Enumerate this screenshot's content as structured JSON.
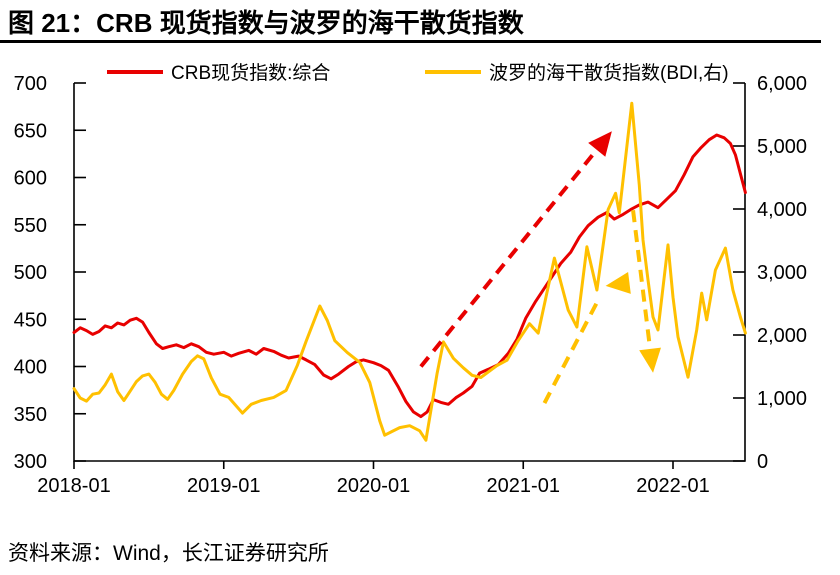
{
  "figure": {
    "source": "资料来源：Wind，长江证券研究所"
  },
  "chart_data": {
    "type": "line",
    "title": "图 21：CRB 现货指数与波罗的海干散货指数",
    "x_axis": {
      "unit": "months since 2018-01",
      "tick_months": [
        0,
        12,
        24,
        36,
        48
      ],
      "ticks": [
        "2018-01",
        "2019-01",
        "2020-01",
        "2021-01",
        "2022-01"
      ]
    },
    "left_axis": {
      "min": 300,
      "max": 700,
      "ticks": [
        "700",
        "650",
        "600",
        "550",
        "500",
        "450",
        "400",
        "350",
        "300"
      ]
    },
    "right_axis": {
      "min": 0,
      "max": 6000,
      "ticks": [
        "6,000",
        "5,000",
        "4,000",
        "3,000",
        "2,000",
        "1,000",
        "0"
      ]
    },
    "series": [
      {
        "name": "CRB现货指数:综合",
        "axis": "left",
        "color": "#e80000",
        "points": [
          [
            0,
            436
          ],
          [
            0.5,
            441
          ],
          [
            1,
            438
          ],
          [
            1.5,
            434
          ],
          [
            2,
            437
          ],
          [
            2.5,
            443
          ],
          [
            3,
            441
          ],
          [
            3.5,
            446
          ],
          [
            4,
            444
          ],
          [
            4.5,
            449
          ],
          [
            5,
            451
          ],
          [
            5.5,
            447
          ],
          [
            6,
            436
          ],
          [
            6.6,
            424
          ],
          [
            7.1,
            419
          ],
          [
            7.6,
            421
          ],
          [
            8.2,
            423
          ],
          [
            8.8,
            420
          ],
          [
            9.4,
            424
          ],
          [
            10,
            421
          ],
          [
            10.6,
            415
          ],
          [
            11.2,
            413
          ],
          [
            12,
            415
          ],
          [
            12.6,
            411
          ],
          [
            13.2,
            414
          ],
          [
            14,
            417
          ],
          [
            14.6,
            413
          ],
          [
            15.2,
            419
          ],
          [
            16,
            416
          ],
          [
            16.6,
            412
          ],
          [
            17.2,
            409
          ],
          [
            18,
            411
          ],
          [
            18.6,
            407
          ],
          [
            19.3,
            402
          ],
          [
            20,
            391
          ],
          [
            20.6,
            387
          ],
          [
            21.2,
            392
          ],
          [
            22,
            400
          ],
          [
            22.6,
            405
          ],
          [
            23.2,
            407
          ],
          [
            24,
            404
          ],
          [
            24.6,
            401
          ],
          [
            25.2,
            396
          ],
          [
            26,
            378
          ],
          [
            26.6,
            363
          ],
          [
            27.2,
            352
          ],
          [
            27.8,
            347
          ],
          [
            28.3,
            352
          ],
          [
            28.8,
            365
          ],
          [
            29.4,
            362
          ],
          [
            30,
            360
          ],
          [
            30.6,
            367
          ],
          [
            31.2,
            372
          ],
          [
            31.9,
            379
          ],
          [
            32.5,
            393
          ],
          [
            33.2,
            397
          ],
          [
            34,
            402
          ],
          [
            34.8,
            414
          ],
          [
            35.5,
            429
          ],
          [
            36.2,
            451
          ],
          [
            37,
            469
          ],
          [
            38,
            489
          ],
          [
            39,
            509
          ],
          [
            39.8,
            521
          ],
          [
            40.5,
            537
          ],
          [
            41.2,
            549
          ],
          [
            42,
            558
          ],
          [
            42.7,
            563
          ],
          [
            43.3,
            556
          ],
          [
            44,
            561
          ],
          [
            44.6,
            566
          ],
          [
            45.3,
            571
          ],
          [
            46,
            574
          ],
          [
            46.8,
            568
          ],
          [
            47.5,
            577
          ],
          [
            48.2,
            586
          ],
          [
            48.9,
            603
          ],
          [
            49.6,
            622
          ],
          [
            50.2,
            631
          ],
          [
            50.9,
            640
          ],
          [
            51.5,
            645
          ],
          [
            52.1,
            642
          ],
          [
            52.6,
            636
          ],
          [
            53,
            624
          ],
          [
            53.4,
            604
          ],
          [
            53.8,
            584
          ]
        ]
      },
      {
        "name": "波罗的海干散货指数(BDI,右)",
        "axis": "right",
        "color": "#ffc000",
        "points": [
          [
            0,
            1150
          ],
          [
            0.5,
            1000
          ],
          [
            1,
            950
          ],
          [
            1.5,
            1060
          ],
          [
            2,
            1080
          ],
          [
            2.5,
            1210
          ],
          [
            3,
            1380
          ],
          [
            3.5,
            1100
          ],
          [
            4,
            960
          ],
          [
            4.5,
            1110
          ],
          [
            5,
            1260
          ],
          [
            5.5,
            1350
          ],
          [
            6,
            1380
          ],
          [
            6.5,
            1250
          ],
          [
            7,
            1060
          ],
          [
            7.5,
            980
          ],
          [
            8,
            1120
          ],
          [
            8.7,
            1380
          ],
          [
            9.4,
            1580
          ],
          [
            9.9,
            1670
          ],
          [
            10.4,
            1620
          ],
          [
            11,
            1320
          ],
          [
            11.7,
            1060
          ],
          [
            12.4,
            1010
          ],
          [
            13.5,
            760
          ],
          [
            14.2,
            900
          ],
          [
            15,
            960
          ],
          [
            16,
            1010
          ],
          [
            17,
            1120
          ],
          [
            17.9,
            1520
          ],
          [
            18.6,
            1900
          ],
          [
            19.7,
            2460
          ],
          [
            20.3,
            2230
          ],
          [
            20.9,
            1910
          ],
          [
            21.9,
            1720
          ],
          [
            22.9,
            1565
          ],
          [
            23.7,
            1245
          ],
          [
            24.5,
            640
          ],
          [
            24.9,
            410
          ],
          [
            25.5,
            470
          ],
          [
            26.1,
            530
          ],
          [
            26.9,
            560
          ],
          [
            27.7,
            480
          ],
          [
            28.2,
            330
          ],
          [
            29.1,
            1390
          ],
          [
            29.6,
            1890
          ],
          [
            30.4,
            1630
          ],
          [
            31.2,
            1480
          ],
          [
            31.9,
            1360
          ],
          [
            32.6,
            1325
          ],
          [
            33.9,
            1515
          ],
          [
            34.7,
            1600
          ],
          [
            35.6,
            1915
          ],
          [
            36.5,
            2180
          ],
          [
            37.2,
            2030
          ],
          [
            38.5,
            3220
          ],
          [
            39.6,
            2395
          ],
          [
            40.3,
            2125
          ],
          [
            41.1,
            3400
          ],
          [
            41.9,
            2715
          ],
          [
            42.8,
            3990
          ],
          [
            43.4,
            4250
          ],
          [
            43.7,
            3940
          ],
          [
            44.7,
            5680
          ],
          [
            45.3,
            4380
          ],
          [
            45.6,
            3510
          ],
          [
            46,
            2875
          ],
          [
            46.4,
            2285
          ],
          [
            46.8,
            2080
          ],
          [
            47.6,
            3430
          ],
          [
            48,
            2600
          ],
          [
            48.4,
            1970
          ],
          [
            49.2,
            1330
          ],
          [
            49.9,
            2080
          ],
          [
            50.3,
            2665
          ],
          [
            50.7,
            2240
          ],
          [
            51.4,
            3030
          ],
          [
            52.2,
            3380
          ],
          [
            52.8,
            2715
          ],
          [
            53.4,
            2285
          ],
          [
            53.8,
            2030
          ]
        ]
      }
    ],
    "annotations": [
      {
        "name": "crb-rise-arrow",
        "style": "dashed-arrow",
        "color": "#e80000",
        "axis": "left",
        "from": [
          27.8,
          400
        ],
        "to": [
          43.1,
          649
        ]
      },
      {
        "name": "bdi-rise-arrow",
        "style": "dashed-arrow",
        "color": "#ffc000",
        "axis": "right",
        "from": [
          37.7,
          920
        ],
        "to": [
          42.6,
          2780
        ],
        "head_deg": 173
      },
      {
        "name": "bdi-fall-arrow",
        "style": "dashed-arrow",
        "color": "#ffc000",
        "axis": "right",
        "from": [
          44.8,
          3980
        ],
        "to": [
          46.4,
          1400
        ]
      }
    ],
    "legend_position": "top",
    "grid": false
  }
}
